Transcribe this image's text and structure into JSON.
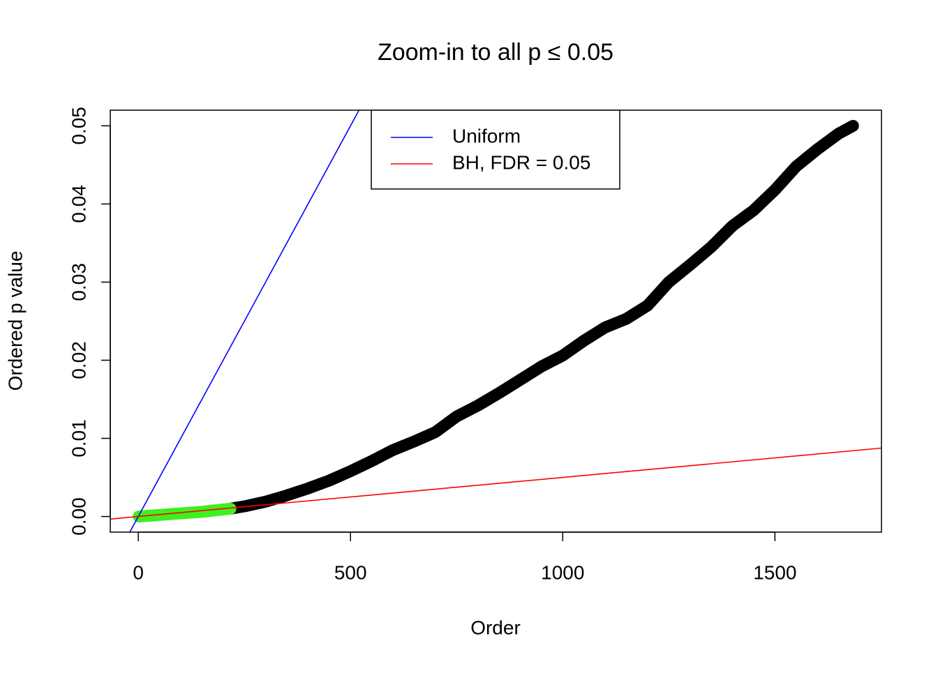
{
  "chart_data": {
    "type": "scatter",
    "title": "Zoom-in to all p ≤ 0.05",
    "x_label": "Order",
    "y_label": "Ordered p value",
    "xlim": [
      -66,
      1751
    ],
    "ylim": [
      -0.002,
      0.052
    ],
    "xticks": [
      0,
      500,
      1000,
      1500
    ],
    "yticks": [
      {
        "value": 0,
        "label": "0.00"
      },
      {
        "value": 0.01,
        "label": "0.01"
      },
      {
        "value": 0.02,
        "label": "0.02"
      },
      {
        "value": 0.03,
        "label": "0.03"
      },
      {
        "value": 0.04,
        "label": "0.04"
      },
      {
        "value": 0.05,
        "label": "0.05"
      }
    ],
    "legend": "top",
    "series": [
      {
        "color": "#000000",
        "x": [
          217,
          250,
          300,
          350,
          400,
          450,
          500,
          550,
          600,
          650,
          700,
          750,
          800,
          850,
          900,
          950,
          1000,
          1050,
          1100,
          1150,
          1200,
          1250,
          1300,
          1350,
          1400,
          1450,
          1500,
          1550,
          1600,
          1650,
          1684
        ],
        "values": [
          0.001,
          0.0013,
          0.0019,
          0.0027,
          0.0036,
          0.0046,
          0.0058,
          0.0071,
          0.0085,
          0.0096,
          0.0108,
          0.0128,
          0.0142,
          0.0158,
          0.0175,
          0.0192,
          0.0206,
          0.0225,
          0.0242,
          0.0253,
          0.027,
          0.03,
          0.0322,
          0.0345,
          0.0372,
          0.0392,
          0.0418,
          0.0448,
          0.047,
          0.049,
          0.05
        ]
      },
      {
        "color": "#3ef01e",
        "x": [
          1,
          50,
          100,
          150,
          200,
          217
        ],
        "values": [
          0,
          0.0002,
          0.0004,
          0.0006,
          0.0009,
          0.001
        ]
      }
    ],
    "lines": [
      {
        "name": "Uniform",
        "color": "#0000ff",
        "slope": 0.0001,
        "intercept": 0
      },
      {
        "name": "BH, FDR = 0.05",
        "color": "#ff0000",
        "slope": 5e-06,
        "intercept": 0
      }
    ]
  }
}
